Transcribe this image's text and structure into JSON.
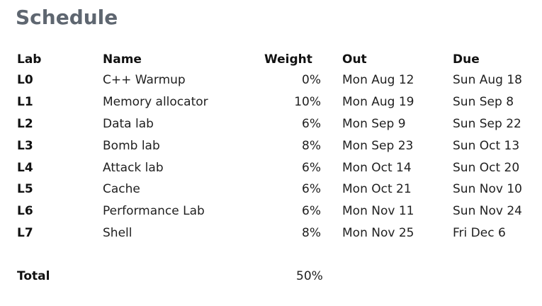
{
  "title": "Schedule",
  "table": {
    "headers": {
      "lab": "Lab",
      "name": "Name",
      "weight": "Weight",
      "out": "Out",
      "due": "Due"
    },
    "rows": [
      {
        "lab": "L0",
        "name": "C++ Warmup",
        "weight": "0%",
        "out": "Mon Aug 12",
        "due": "Sun Aug 18"
      },
      {
        "lab": "L1",
        "name": "Memory allocator",
        "weight": "10%",
        "out": "Mon Aug 19",
        "due": "Sun Sep 8"
      },
      {
        "lab": "L2",
        "name": "Data lab",
        "weight": "6%",
        "out": "Mon Sep 9",
        "due": "Sun Sep 22"
      },
      {
        "lab": "L3",
        "name": "Bomb lab",
        "weight": "8%",
        "out": "Mon Sep 23",
        "due": "Sun Oct 13"
      },
      {
        "lab": "L4",
        "name": "Attack lab",
        "weight": "6%",
        "out": "Mon Oct 14",
        "due": "Sun Oct 20"
      },
      {
        "lab": "L5",
        "name": "Cache",
        "weight": "6%",
        "out": "Mon Oct 21",
        "due": "Sun Nov 10"
      },
      {
        "lab": "L6",
        "name": "Performance Lab",
        "weight": "6%",
        "out": "Mon Nov 11",
        "due": "Sun Nov 24"
      },
      {
        "lab": "L7",
        "name": "Shell",
        "weight": "8%",
        "out": "Mon Nov 25",
        "due": "Fri Dec 6"
      }
    ]
  },
  "total": {
    "label": "Total",
    "value": "50%"
  }
}
